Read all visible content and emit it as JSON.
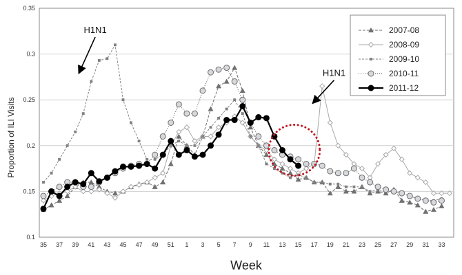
{
  "chart_data": {
    "type": "line",
    "title": "",
    "xlabel": "Week",
    "ylabel": "Proportion of ILI Visits",
    "ylim": [
      0.1,
      0.35
    ],
    "yticks": [
      "0.1",
      "0.15",
      "0.2",
      "0.25",
      "0.3",
      "0.35"
    ],
    "grid": "horizontal",
    "legend_position": "top-right",
    "weeks": [
      35,
      36,
      37,
      38,
      39,
      40,
      41,
      42,
      43,
      44,
      45,
      46,
      47,
      48,
      49,
      50,
      51,
      52,
      1,
      2,
      3,
      4,
      5,
      6,
      7,
      8,
      9,
      10,
      11,
      12,
      13,
      14,
      15,
      16,
      17,
      18,
      19,
      20,
      21,
      22,
      23,
      24,
      25,
      26,
      27,
      28,
      29,
      30,
      31,
      32,
      33,
      34
    ],
    "xtick_labels": [
      "35",
      "37",
      "39",
      "41",
      "43",
      "45",
      "47",
      "49",
      "51",
      "1",
      "3",
      "5",
      "7",
      "9",
      "11",
      "13",
      "15",
      "17",
      "19",
      "21",
      "23",
      "25",
      "27",
      "29",
      "31",
      "33"
    ],
    "series": [
      {
        "name": "2007-08",
        "color": "#707070",
        "marker": "triangle",
        "dash": "4 2",
        "width": 1,
        "values": [
          0.13,
          0.135,
          0.14,
          0.145,
          0.155,
          0.16,
          0.16,
          0.155,
          0.15,
          0.148,
          0.15,
          0.155,
          0.158,
          0.16,
          0.155,
          0.16,
          0.18,
          0.21,
          0.2,
          0.19,
          0.21,
          0.24,
          0.265,
          0.27,
          0.285,
          0.26,
          0.22,
          0.2,
          0.19,
          0.18,
          0.175,
          0.17,
          0.163,
          0.165,
          0.16,
          0.16,
          0.148,
          0.155,
          0.15,
          0.15,
          0.155,
          0.148,
          0.15,
          0.148,
          0.152,
          0.14,
          0.138,
          0.135,
          0.128,
          0.13,
          0.134,
          null
        ]
      },
      {
        "name": "2008-09",
        "color": "#a8a8a8",
        "marker": "diamond",
        "dash": "",
        "width": 1,
        "values": [
          0.14,
          0.145,
          0.148,
          0.15,
          0.155,
          0.15,
          0.15,
          0.152,
          0.148,
          0.143,
          0.15,
          0.155,
          0.157,
          0.16,
          0.165,
          0.17,
          0.2,
          0.215,
          0.22,
          0.205,
          0.21,
          0.21,
          0.22,
          0.225,
          0.232,
          0.225,
          0.21,
          0.2,
          0.195,
          0.185,
          0.18,
          0.175,
          0.17,
          0.175,
          0.18,
          0.265,
          0.225,
          0.2,
          0.19,
          0.18,
          0.175,
          0.165,
          0.18,
          0.19,
          0.197,
          0.185,
          0.17,
          0.165,
          0.16,
          0.148,
          0.148,
          0.148
        ]
      },
      {
        "name": "2009-10",
        "color": "#808080",
        "marker": "square",
        "dash": "3 2",
        "width": 1,
        "values": [
          0.16,
          0.17,
          0.185,
          0.2,
          0.215,
          0.235,
          0.27,
          0.293,
          0.295,
          0.31,
          0.25,
          0.225,
          0.205,
          0.185,
          0.185,
          0.19,
          0.2,
          0.205,
          0.2,
          0.2,
          0.21,
          0.22,
          0.23,
          0.24,
          0.25,
          0.235,
          0.21,
          0.2,
          0.18,
          0.175,
          0.17,
          0.165,
          0.168,
          0.165,
          0.16,
          0.16,
          0.158,
          0.158,
          0.155,
          0.155,
          0.155,
          0.15,
          0.152,
          0.15,
          0.15,
          0.148,
          0.145,
          0.142,
          0.14,
          0.14,
          0.142,
          null
        ]
      },
      {
        "name": "2010-11",
        "color": "#6e6e6e",
        "marker": "circle-open",
        "dash": "1 2",
        "width": 1.2,
        "values": [
          0.145,
          0.15,
          0.155,
          0.16,
          0.16,
          0.155,
          0.155,
          0.16,
          0.165,
          0.17,
          0.175,
          0.178,
          0.18,
          0.18,
          0.19,
          0.21,
          0.225,
          0.245,
          0.235,
          0.235,
          0.26,
          0.28,
          0.283,
          0.285,
          0.27,
          0.25,
          0.225,
          0.21,
          0.2,
          0.195,
          0.19,
          0.188,
          0.185,
          0.18,
          0.18,
          0.178,
          0.172,
          0.17,
          0.17,
          0.175,
          0.165,
          0.16,
          0.155,
          0.152,
          0.15,
          0.148,
          0.145,
          0.142,
          0.14,
          0.138,
          0.14,
          null
        ]
      },
      {
        "name": "2011-12",
        "color": "#000000",
        "marker": "circle-filled",
        "dash": "",
        "width": 2.2,
        "values": [
          0.131,
          0.15,
          0.145,
          0.155,
          0.16,
          0.158,
          0.17,
          0.161,
          0.165,
          0.172,
          0.177,
          0.177,
          0.178,
          0.18,
          0.175,
          0.19,
          0.205,
          0.19,
          0.195,
          0.188,
          0.19,
          0.2,
          0.212,
          0.228,
          0.228,
          0.243,
          0.225,
          0.231,
          0.23,
          0.21,
          0.195,
          0.185,
          0.178,
          null,
          null,
          null,
          null,
          null,
          null,
          null,
          null,
          null,
          null,
          null,
          null,
          null,
          null,
          null,
          null,
          null,
          null,
          null
        ]
      }
    ],
    "annotations": [
      {
        "text": "H1N1",
        "label_week_index": 6.5,
        "label_value": 0.323,
        "arrow_to_index": 4.5,
        "arrow_to_value": 0.28
      },
      {
        "text": "H1N1",
        "label_week_index": 36.5,
        "label_value": 0.276,
        "arrow_to_index": 33.9,
        "arrow_to_value": 0.247
      }
    ],
    "highlight": {
      "shape": "dotted-circle",
      "color": "#c0141c",
      "center_index": 31.5,
      "center_value": 0.195,
      "radius_weeks": 3.2
    }
  }
}
